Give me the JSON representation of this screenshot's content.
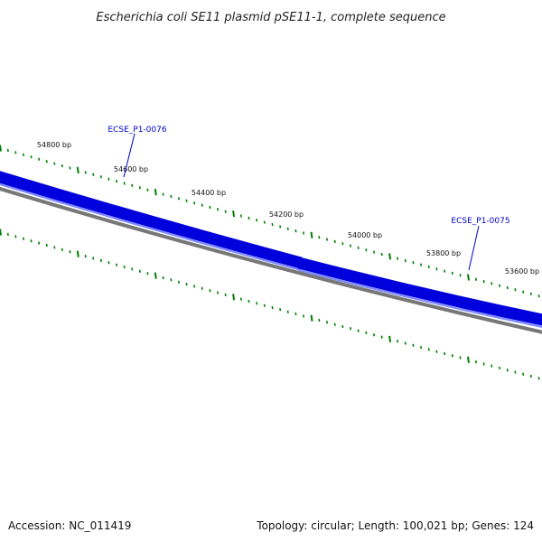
{
  "title": "Escherichia coli SE11 plasmid pSE11-1, complete sequence",
  "footer": {
    "accession": "Accession: NC_011419",
    "summary": "Topology: circular; Length: 100,021 bp; Genes: 124"
  },
  "colors": {
    "gene": "#0000dd",
    "gene_highlight": "#6f7cff",
    "backbone": "#777777",
    "tick": "#008000",
    "label": "#0000cc",
    "text": "#111111"
  },
  "genes": [
    {
      "id": "ECSE_P1-0076",
      "label": "ECSE_P1-0076"
    },
    {
      "id": "ECSE_P1-0075",
      "label": "ECSE_P1-0075"
    }
  ],
  "ruler": [
    "54800 bp",
    "54600 bp",
    "54400 bp",
    "54200 bp",
    "54000 bp",
    "53800 bp",
    "53600 bp"
  ]
}
